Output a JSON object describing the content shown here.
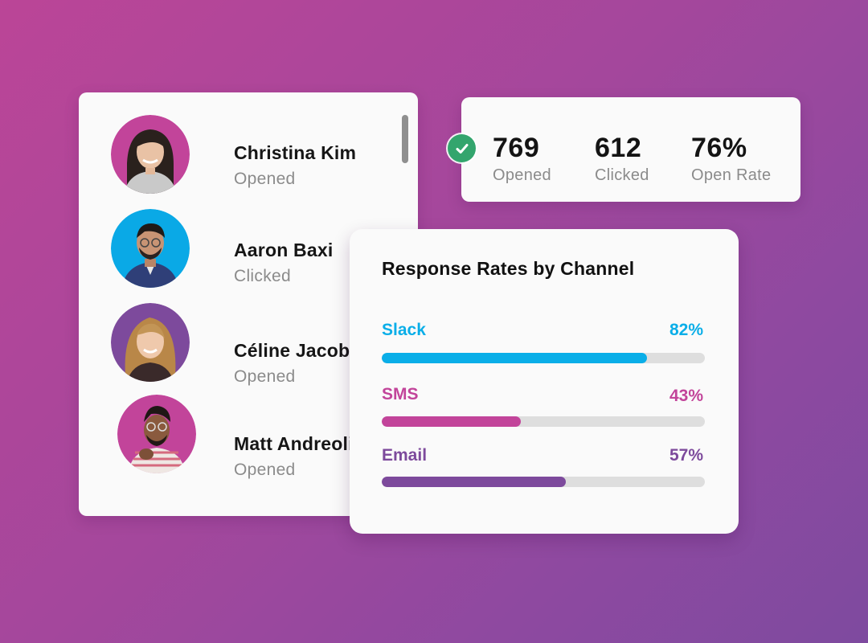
{
  "recipients": [
    {
      "name": "Christina Kim",
      "status": "Opened",
      "avatar_bg": "#c2449a"
    },
    {
      "name": "Aaron Baxi",
      "status": "Clicked",
      "avatar_bg": "#0aa9e6"
    },
    {
      "name": "Céline Jacobs",
      "status": "Opened",
      "avatar_bg": "#7d4a9c"
    },
    {
      "name": "Matt Andreoli",
      "status": "Opened",
      "avatar_bg": "#c2449a"
    }
  ],
  "stats": {
    "icon": "check-circle-icon",
    "items": [
      {
        "value": "769",
        "label": "Opened"
      },
      {
        "value": "612",
        "label": "Clicked"
      },
      {
        "value": "76%",
        "label": "Open Rate"
      }
    ]
  },
  "response_rates": {
    "title": "Response Rates by Channel",
    "channels": [
      {
        "name": "Slack",
        "percent_label": "82%",
        "percent": 82,
        "color": "#0aaee8"
      },
      {
        "name": "SMS",
        "percent_label": "43%",
        "percent": 43,
        "color": "#c2449a"
      },
      {
        "name": "Email",
        "percent_label": "57%",
        "percent": 57,
        "color": "#7d4a9c"
      }
    ]
  }
}
